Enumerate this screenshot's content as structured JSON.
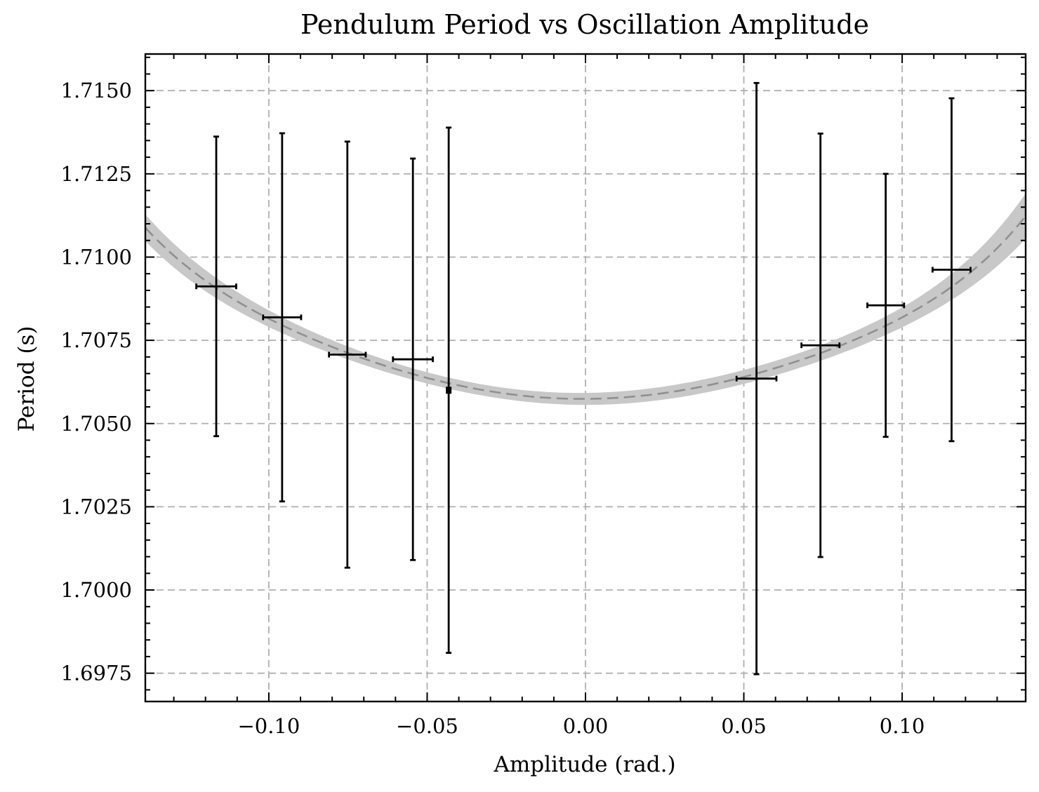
{
  "colors": {
    "background": "#ffffff",
    "error_bars": "#000000",
    "fit_line": "#909090",
    "fit_band": "#c8c8c8",
    "grid": "#b0b0b0"
  },
  "chart_data": {
    "type": "scatter",
    "title": "Pendulum Period vs Oscillation Amplitude",
    "xlabel": "Amplitude (rad.)",
    "ylabel": "Period (s)",
    "xlim": [
      -0.139,
      0.139
    ],
    "ylim": [
      1.69665,
      1.7161
    ],
    "grid": true,
    "legend": "none",
    "x_ticks": [
      -0.1,
      -0.05,
      0.0,
      0.05,
      0.1
    ],
    "x_tick_labels": [
      "−0.10",
      "−0.05",
      "0.00",
      "0.05",
      "0.10"
    ],
    "y_ticks": [
      1.6975,
      1.7,
      1.7025,
      1.705,
      1.7075,
      1.71,
      1.7125,
      1.715
    ],
    "y_tick_labels": [
      "1.6975",
      "1.7000",
      "1.7025",
      "1.7050",
      "1.7075",
      "1.7100",
      "1.7125",
      "1.7150"
    ],
    "series": [
      {
        "style": "errorbar",
        "x": [
          -0.1166,
          -0.0958,
          -0.0752,
          -0.0545,
          -0.0432,
          0.054,
          0.0742,
          0.0948,
          0.1156
        ],
        "y": [
          1.70912,
          1.70819,
          1.70707,
          1.70693,
          1.706,
          1.70635,
          1.70735,
          1.70855,
          1.70962
        ],
        "xerr": [
          0.0063,
          0.006,
          0.0058,
          0.0063,
          0.0,
          0.0063,
          0.006,
          0.0058,
          0.006
        ],
        "yerr": [
          0.0045,
          0.00553,
          0.0064,
          0.00603,
          0.00789,
          0.00888,
          0.00636,
          0.00395,
          0.00515
        ]
      },
      {
        "style": "fit",
        "x": [
          -0.139,
          -0.1,
          -0.05,
          0.0,
          0.05,
          0.1,
          0.139
        ],
        "y": [
          1.71088,
          1.70815,
          1.70637,
          1.70574,
          1.7064,
          1.70819,
          1.71123
        ],
        "band_halfwidth": [
          0.0004,
          0.00025,
          0.00017,
          0.00018,
          0.00021,
          0.0003,
          0.00068
        ]
      }
    ]
  }
}
